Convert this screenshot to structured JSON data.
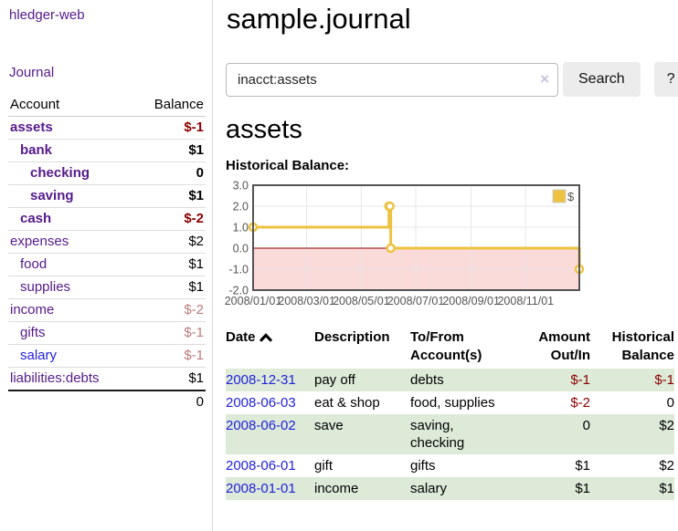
{
  "app": {
    "title": "hledger-web"
  },
  "sidebar": {
    "nav": [
      {
        "label": "Journal"
      }
    ],
    "accounts_table": {
      "headers": {
        "account": "Account",
        "balance": "Balance"
      },
      "rows": [
        {
          "account": "assets",
          "depth": 0,
          "bold": true,
          "balance": "$-1",
          "balance_tone": "neg-strong",
          "link_tone": "purple"
        },
        {
          "account": "bank",
          "depth": 1,
          "bold": true,
          "balance": "$1",
          "balance_tone": "pos",
          "link_tone": "purple"
        },
        {
          "account": "checking",
          "depth": 2,
          "bold": true,
          "balance": "0",
          "balance_tone": "pos",
          "link_tone": "purple"
        },
        {
          "account": "saving",
          "depth": 2,
          "bold": true,
          "balance": "$1",
          "balance_tone": "pos",
          "link_tone": "purple"
        },
        {
          "account": "cash",
          "depth": 1,
          "bold": true,
          "balance": "$-2",
          "balance_tone": "neg-strong",
          "link_tone": "purple"
        },
        {
          "account": "expenses",
          "depth": 0,
          "bold": false,
          "balance": "$2",
          "balance_tone": "pos",
          "link_tone": "purple"
        },
        {
          "account": "food",
          "depth": 1,
          "bold": false,
          "balance": "$1",
          "balance_tone": "pos",
          "link_tone": "purple"
        },
        {
          "account": "supplies",
          "depth": 1,
          "bold": false,
          "balance": "$1",
          "balance_tone": "pos",
          "link_tone": "purple"
        },
        {
          "account": "income",
          "depth": 0,
          "bold": false,
          "balance": "$-2",
          "balance_tone": "neg-soft",
          "link_tone": "purple"
        },
        {
          "account": "gifts",
          "depth": 1,
          "bold": false,
          "balance": "$-1",
          "balance_tone": "neg-soft",
          "link_tone": "purple"
        },
        {
          "account": "salary",
          "depth": 1,
          "bold": false,
          "balance": "$-1",
          "balance_tone": "neg-soft",
          "link_tone": "blue"
        },
        {
          "account": "liabilities:debts",
          "depth": 0,
          "bold": false,
          "balance": "$1",
          "balance_tone": "pos",
          "link_tone": "purple"
        }
      ],
      "total": "0"
    }
  },
  "main": {
    "title": "sample.journal",
    "search": {
      "value": "inacct:assets",
      "clear_icon": "×",
      "button": "Search",
      "help_button": "?"
    },
    "account_heading": "assets",
    "chart_heading": "Historical Balance:"
  },
  "chart_data": {
    "type": "line",
    "step": true,
    "title": "Historical Balance",
    "x_start": "2008-01-01",
    "x_end": "2008-12-31",
    "ylim": [
      -2,
      3
    ],
    "grid": true,
    "legend": {
      "label": "$",
      "color": "#edc240",
      "position": "top-right"
    },
    "series": [
      {
        "name": "$",
        "color": "#edc240",
        "points": [
          {
            "date": "2008-01-01",
            "value": 1
          },
          {
            "date": "2008-06-01",
            "value": 2
          },
          {
            "date": "2008-06-02",
            "value": 2
          },
          {
            "date": "2008-06-03",
            "value": 0
          },
          {
            "date": "2008-12-31",
            "value": -1
          }
        ]
      }
    ],
    "y_ticks": [
      {
        "label": "3.0",
        "value": 3
      },
      {
        "label": "2.0",
        "value": 2
      },
      {
        "label": "1.0",
        "value": 1
      },
      {
        "label": "0.0",
        "value": 0
      },
      {
        "label": "-1.0",
        "value": -1
      },
      {
        "label": "-2.0",
        "value": -2
      }
    ],
    "x_ticks": [
      {
        "label": "2008/01/01",
        "date": "2008-01-01"
      },
      {
        "label": "2008/03/01",
        "date": "2008-03-01"
      },
      {
        "label": "2008/05/01",
        "date": "2008-05-01"
      },
      {
        "label": "2008/07/01",
        "date": "2008-07-01"
      },
      {
        "label": "2008/09/01",
        "date": "2008-09-01"
      },
      {
        "label": "2008/11/01",
        "date": "2008-11-01"
      }
    ],
    "negative_region_fill": "#fbdada",
    "zero_line_color": "#8b0000",
    "grid_color": "#e7e7e7",
    "border_color": "#545454",
    "axis_text_color": "#545454"
  },
  "register_table": {
    "headers": {
      "date": "Date",
      "description": "Description",
      "accounts": "To/From Account(s)",
      "amount": "Amount Out/In",
      "balance": "Historical Balance"
    },
    "rows": [
      {
        "date": "2008-12-31",
        "description": "pay off",
        "accounts": "debts",
        "amount": "$-1",
        "amount_negative": true,
        "balance": "$-1",
        "balance_negative": true
      },
      {
        "date": "2008-06-03",
        "description": "eat & shop",
        "accounts": "food, supplies",
        "amount": "$-2",
        "amount_negative": true,
        "balance": "0",
        "balance_negative": false
      },
      {
        "date": "2008-06-02",
        "description": "save",
        "accounts": "saving, checking",
        "amount": "0",
        "amount_negative": false,
        "balance": "$2",
        "balance_negative": false
      },
      {
        "date": "2008-06-01",
        "description": "gift",
        "accounts": "gifts",
        "amount": "$1",
        "amount_negative": false,
        "balance": "$2",
        "balance_negative": false
      },
      {
        "date": "2008-01-01",
        "description": "income",
        "accounts": "salary",
        "amount": "$1",
        "amount_negative": false,
        "balance": "$1",
        "balance_negative": false
      }
    ]
  },
  "colors": {
    "purple_link": "#551a8b",
    "blue_link": "#2222dd",
    "negative_strong": "#8b0000",
    "negative_soft": "#bb7b7b",
    "row_stripe_green": "#ddead8",
    "series_gold": "#edc240",
    "button_bg": "#ececec"
  }
}
